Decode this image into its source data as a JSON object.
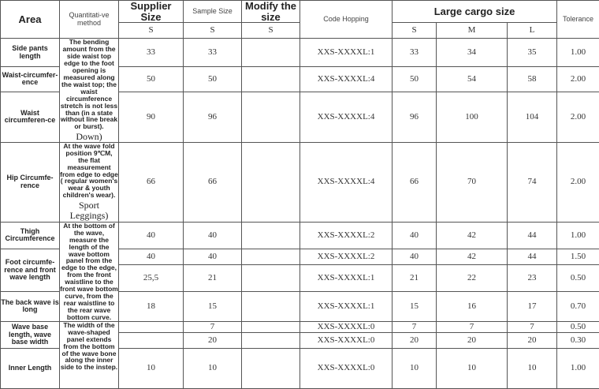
{
  "table": {
    "header": {
      "area": "Area",
      "method": "Quantitati-ve method",
      "supplier": "Supplier Size",
      "sample": "Sample Size",
      "modify": "Modify the size",
      "code": "Code Hopping",
      "cargo": "Large cargo size",
      "tolerance": "Tolerance"
    },
    "subheader": [
      "S",
      "S",
      "S",
      "S",
      "M",
      "L"
    ],
    "rows": [
      {
        "area": "Side pants length",
        "method": "The bending amount from the side waist top edge to the foot opening is measured along the waist top; the waist circumference stretch is not less than (in a state without line break or burst).",
        "method_note": "Down)",
        "cells": [
          "33",
          "33",
          "XXS-XXXXL:1",
          "33",
          "34",
          "35",
          "1.00"
        ]
      },
      {
        "area": "Waist-circumfer-ence",
        "cells": [
          "50",
          "50",
          "XXS-XXXXL:4",
          "50",
          "54",
          "58",
          "2.00"
        ]
      },
      {
        "area": "Waist circumferen-ce",
        "cells": [
          "90",
          "96",
          "XXS-XXXXL:4",
          "96",
          "100",
          "104",
          "2.00"
        ]
      },
      {
        "area": "Hip Circumfe-rence",
        "method": "At the wave fold position 9℃M, the flat measurement from edge to edge ( regular women's wear & youth children's wear).",
        "method_note": "Sport Leggings)",
        "cells": [
          "66",
          "66",
          "XXS-XXXXL:4",
          "66",
          "70",
          "74",
          "2.00"
        ]
      },
      {
        "area": "Thigh Circumference",
        "method": "At the bottom of the wave, measure the length of the wave bottom panel from the edge to the edge, from the front waistline to the front wave bottom curve, from the rear waistline to the rear wave bottom curve.",
        "cells": [
          "40",
          "40",
          "XXS-XXXXL:2",
          "40",
          "42",
          "44",
          "1.00"
        ]
      },
      {
        "area": "Foot circumfe-rence and front wave length",
        "cells": [
          "40",
          "40",
          "XXS-XXXXL:2",
          "40",
          "42",
          "44",
          "1.50"
        ]
      },
      {
        "cells": [
          "25,5",
          "21",
          "XXS-XXXXL:1",
          "21",
          "22",
          "23",
          "0.50"
        ]
      },
      {
        "area": "The back wave is long",
        "cells": [
          "18",
          "15",
          "XXS-XXXXL:1",
          "15",
          "16",
          "17",
          "0.70"
        ]
      },
      {
        "area": "Wave base length, wave base width",
        "method": "The width of the wave-shaped panel extends from the bottom of the wave bone along the inner side to the instep.",
        "cells": [
          null,
          "7",
          "XXS-XXXXL:0",
          "7",
          "7",
          "7",
          "0.50"
        ]
      },
      {
        "cells": [
          null,
          "20",
          "XXS-XXXXL:0",
          "20",
          "20",
          "20",
          "0.30"
        ]
      },
      {
        "area": "Inner Length",
        "cells": [
          "10",
          "10",
          "XXS-XXXXL:0",
          "10",
          "10",
          "10",
          "1.00"
        ]
      }
    ]
  }
}
